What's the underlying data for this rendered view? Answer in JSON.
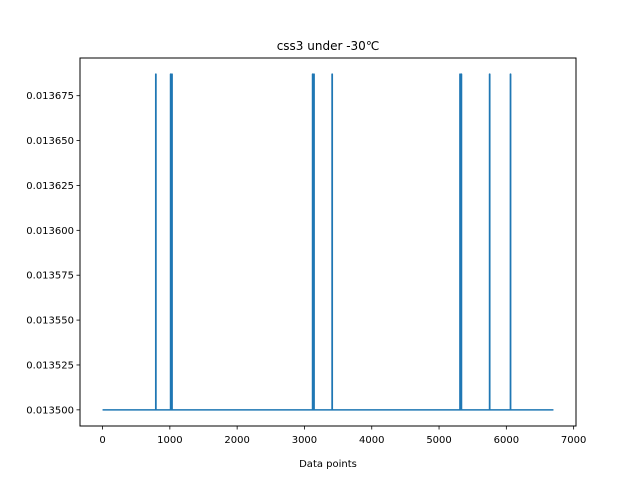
{
  "chart_data": {
    "type": "line",
    "title": "css3 under -30℃",
    "xlabel": "Data points",
    "ylabel": "",
    "xlim": [
      -335,
      7035
    ],
    "ylim": [
      0.013491,
      0.013696
    ],
    "xticks": [
      0,
      1000,
      2000,
      3000,
      4000,
      5000,
      6000,
      7000
    ],
    "xtick_labels": [
      "0",
      "1000",
      "2000",
      "3000",
      "4000",
      "5000",
      "6000",
      "7000"
    ],
    "yticks": [
      0.0135,
      0.013525,
      0.01355,
      0.013575,
      0.0136,
      0.013625,
      0.01365,
      0.013675
    ],
    "ytick_labels": [
      "0.013500",
      "0.013525",
      "0.013550",
      "0.013575",
      "0.013600",
      "0.013625",
      "0.013650",
      "0.013675"
    ],
    "grid": false,
    "series": [
      {
        "color": "#1f77b4",
        "baseline": 0.0135,
        "peak": 0.013687,
        "x_start": 0,
        "x_end": 6700,
        "spike_x": [
          790,
          1010,
          1030,
          3120,
          3140,
          3410,
          5310,
          5330,
          5750,
          6060
        ]
      }
    ]
  }
}
